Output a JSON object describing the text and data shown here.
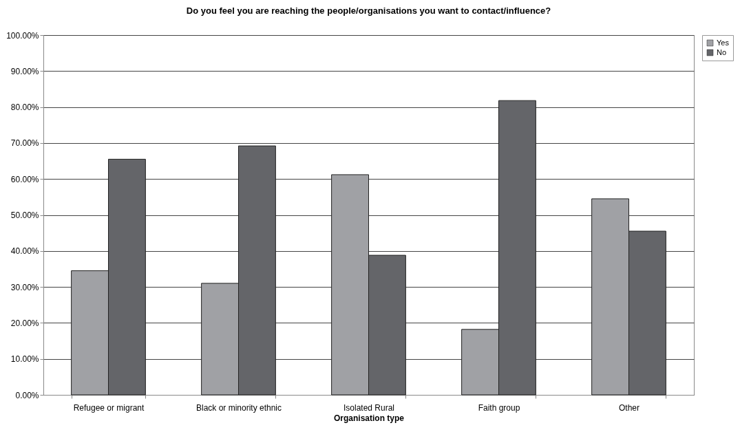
{
  "chart_data": {
    "type": "bar",
    "title": "Do you feel you are reaching the people/organisations you want to contact/influence?",
    "xlabel": "Organisation type",
    "categories": [
      "Refugee or migrant",
      "Black or minority ethnic",
      "Isolated Rural",
      "Faith group",
      "Other"
    ],
    "series": [
      {
        "name": "Yes",
        "color": "#a0a1a5",
        "values": [
          34.5,
          31.0,
          61.2,
          18.2,
          54.5
        ]
      },
      {
        "name": "No",
        "color": "#646569",
        "values": [
          65.5,
          69.2,
          38.8,
          81.8,
          45.5
        ]
      }
    ],
    "ylim": [
      0,
      100
    ],
    "yticks": [
      {
        "value": 0,
        "label": "0.00%"
      },
      {
        "value": 10,
        "label": "10.00%"
      },
      {
        "value": 20,
        "label": "20.00%"
      },
      {
        "value": 30,
        "label": "30.00%"
      },
      {
        "value": 40,
        "label": "40.00%"
      },
      {
        "value": 50,
        "label": "50.00%"
      },
      {
        "value": 60,
        "label": "60.00%"
      },
      {
        "value": 70,
        "label": "70.00%"
      },
      {
        "value": 80,
        "label": "80.00%"
      },
      {
        "value": 90,
        "label": "90.00%"
      },
      {
        "value": 100,
        "label": "100.00%"
      }
    ],
    "grid": "y",
    "legend": "right"
  }
}
